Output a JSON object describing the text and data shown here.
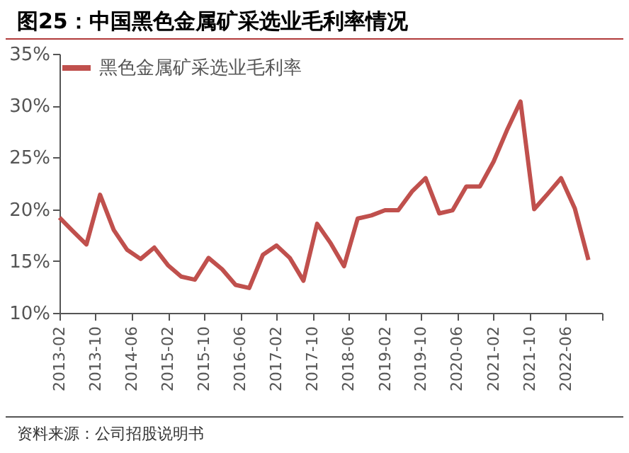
{
  "chart_data": {
    "type": "line",
    "title": "图25：中国黑色金属矿采选业毛利率情况",
    "annotations": [
      "资料来源：公司招股说明书"
    ],
    "x": [
      "2013-02",
      "2013-05",
      "2013-08",
      "2013-11",
      "2014-02",
      "2014-05",
      "2014-08",
      "2014-11",
      "2015-02",
      "2015-05",
      "2015-08",
      "2015-11",
      "2016-02",
      "2016-05",
      "2016-08",
      "2016-11",
      "2017-02",
      "2017-05",
      "2017-08",
      "2017-11",
      "2018-02",
      "2018-05",
      "2018-08",
      "2018-11",
      "2019-02",
      "2019-05",
      "2019-08",
      "2019-11",
      "2020-02",
      "2020-05",
      "2020-08",
      "2020-11",
      "2021-02",
      "2021-05",
      "2021-08",
      "2021-11",
      "2022-02",
      "2022-05",
      "2022-08",
      "2022-11"
    ],
    "series": [
      {
        "name": "黑色金属矿采选业毛利率",
        "color": "#c0504d",
        "values": [
          19.2,
          17.9,
          16.6,
          21.4,
          18.0,
          16.1,
          15.2,
          16.3,
          14.6,
          13.5,
          13.2,
          15.3,
          14.2,
          12.7,
          12.4,
          15.6,
          16.5,
          15.3,
          13.1,
          18.6,
          16.7,
          14.5,
          19.1,
          19.4,
          19.9,
          19.9,
          21.7,
          23.0,
          19.6,
          19.9,
          22.2,
          22.2,
          24.6,
          27.6,
          30.4,
          20.0,
          21.5,
          23.0,
          20.1,
          15.1
        ]
      }
    ],
    "xlim": [
      "2013-02",
      "2023-02"
    ],
    "xticks": [
      {
        "value": "2013-02",
        "label": "2013-02"
      },
      {
        "value": "2013-10",
        "label": "2013-10"
      },
      {
        "value": "2014-06",
        "label": "2014-06"
      },
      {
        "value": "2015-02",
        "label": "2015-02"
      },
      {
        "value": "2015-10",
        "label": "2015-10"
      },
      {
        "value": "2016-06",
        "label": "2016-06"
      },
      {
        "value": "2017-02",
        "label": "2017-02"
      },
      {
        "value": "2017-10",
        "label": "2017-10"
      },
      {
        "value": "2018-06",
        "label": "2018-06"
      },
      {
        "value": "2019-02",
        "label": "2019-02"
      },
      {
        "value": "2019-10",
        "label": "2019-10"
      },
      {
        "value": "2020-06",
        "label": "2020-06"
      },
      {
        "value": "2021-02",
        "label": "2021-02"
      },
      {
        "value": "2021-10",
        "label": "2021-10"
      },
      {
        "value": "2022-06",
        "label": "2022-06"
      },
      {
        "value": "2023-02",
        "label": null
      }
    ],
    "ylim": [
      10,
      35
    ],
    "yticks": [
      {
        "value": 10,
        "label": "10%"
      },
      {
        "value": 15,
        "label": "15%"
      },
      {
        "value": 20,
        "label": "20%"
      },
      {
        "value": 25,
        "label": "25%"
      },
      {
        "value": 30,
        "label": "30%"
      },
      {
        "value": 35,
        "label": "35%"
      }
    ],
    "grid": false,
    "legend": "top",
    "marker": "none",
    "line_style": "solid"
  }
}
